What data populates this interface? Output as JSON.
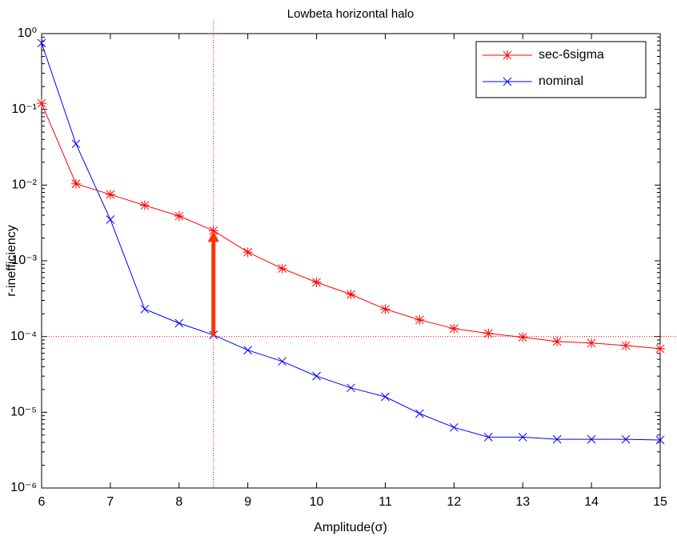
{
  "chart_data": {
    "type": "line",
    "title": "Lowbeta horizontal halo",
    "x_label": "Amplitude(σ)",
    "y_label": "r-inefficiency",
    "x": [
      6,
      6.5,
      7,
      7.5,
      8,
      8.5,
      9,
      9.5,
      10,
      10.5,
      11,
      11.5,
      12,
      12.5,
      13,
      13.5,
      14,
      14.5,
      15
    ],
    "series": [
      {
        "name": "sec-6sigma",
        "color": "#ff0000",
        "marker": "asterisk",
        "values": [
          0.12,
          0.0104,
          0.0075,
          0.0054,
          0.0039,
          0.0025,
          0.0013,
          0.00079,
          0.00052,
          0.00036,
          0.00023,
          0.000166,
          0.000127,
          0.00011,
          9.8e-05,
          8.6e-05,
          8.2e-05,
          7.6e-05,
          6.9e-05
        ]
      },
      {
        "name": "nominal",
        "color": "#0000ff",
        "marker": "x",
        "values": [
          0.75,
          0.035,
          0.0035,
          0.00023,
          0.00015,
          0.000105,
          6.6e-05,
          4.7e-05,
          3e-05,
          2.1e-05,
          1.6e-05,
          9.6e-06,
          6.3e-06,
          4.7e-06,
          4.7e-06,
          4.4e-06,
          4.4e-06,
          4.4e-06,
          4.3e-06
        ]
      }
    ],
    "xlim": [
      6,
      15
    ],
    "xticks": [
      6,
      7,
      8,
      9,
      10,
      11,
      12,
      13,
      14,
      15
    ],
    "ylim": [
      1e-06,
      1
    ],
    "y_scale": "log",
    "yticks": [
      {
        "value": 1e-06,
        "label": "10⁻⁶"
      },
      {
        "value": 1e-05,
        "label": "10⁻⁵"
      },
      {
        "value": 0.0001,
        "label": "10⁻⁴"
      },
      {
        "value": 0.001,
        "label": "10⁻³"
      },
      {
        "value": 0.01,
        "label": "10⁻²"
      },
      {
        "value": 0.1,
        "label": "10⁻¹"
      },
      {
        "value": 1,
        "label": "10⁰"
      }
    ],
    "legend": "northeast",
    "reference_lines": {
      "x": 8.5,
      "y": 0.0001,
      "color": "#ff0000"
    },
    "arrow": {
      "x": 8.5,
      "from": 0.0001,
      "to": 0.0025,
      "color": "#ff3300"
    }
  }
}
